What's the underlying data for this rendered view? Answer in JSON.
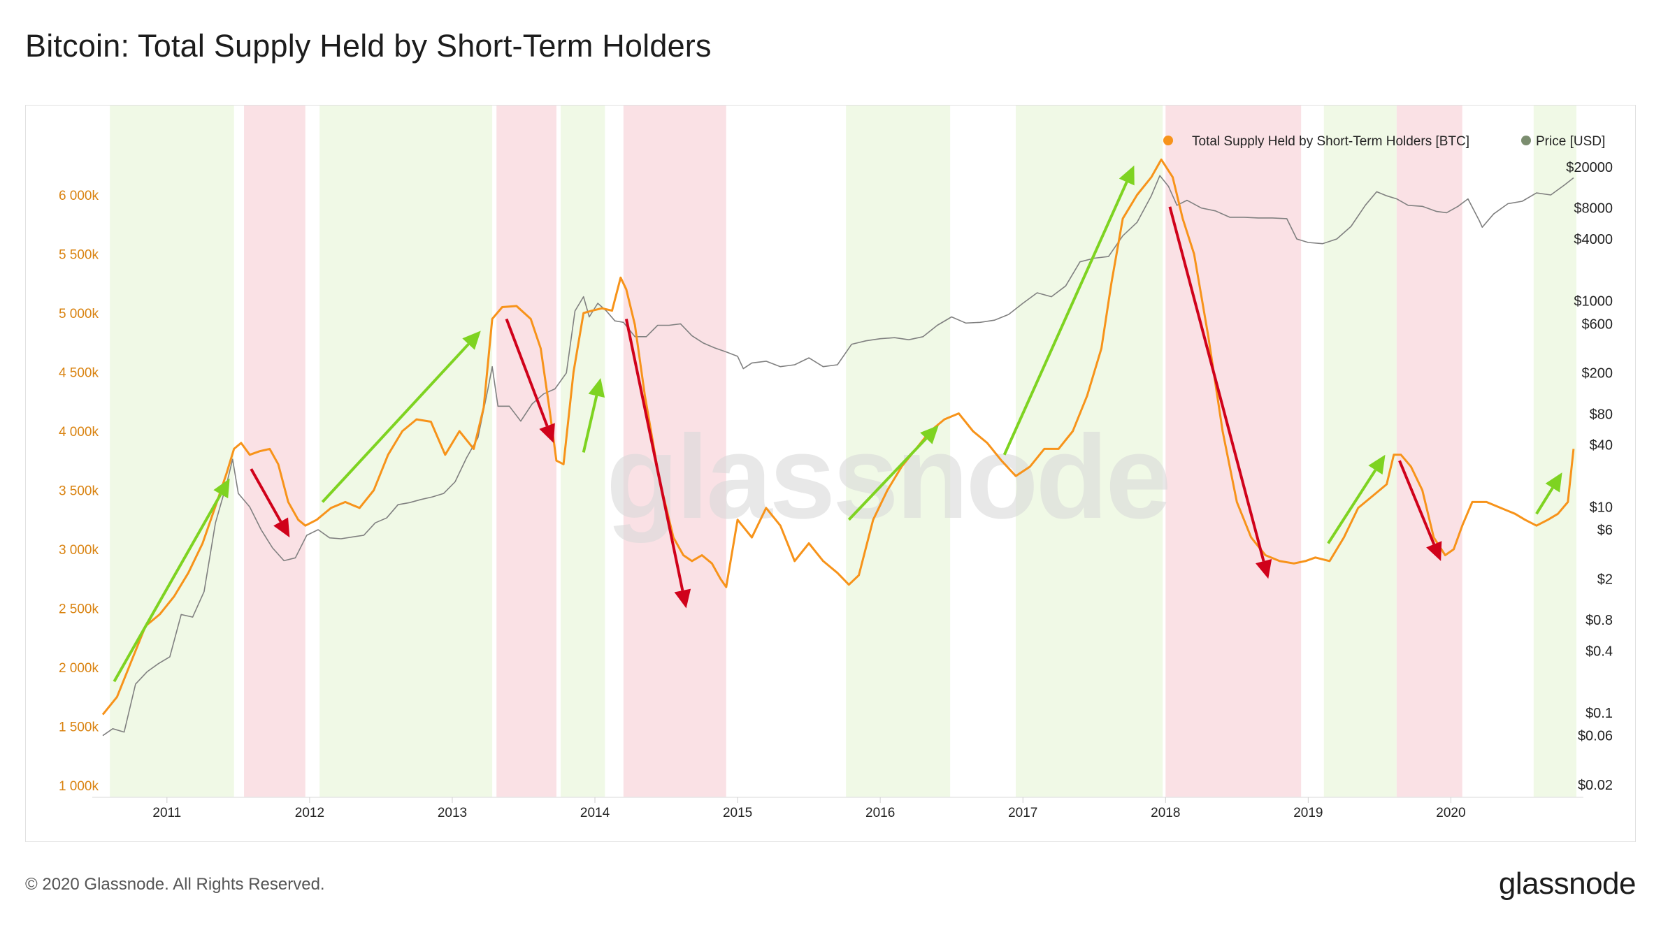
{
  "title": "Bitcoin: Total Supply Held by Short-Term Holders",
  "footer": {
    "copyright": "© 2020 Glassnode. All Rights Reserved.",
    "brand": "glassnode"
  },
  "watermark": "glassnode",
  "colors": {
    "sth_supply": "#f7931a",
    "price": "#808080",
    "up_arrow": "#7ed321",
    "down_arrow": "#d0021b",
    "up_band": "#f0f9e6",
    "down_band": "#fae1e5",
    "left_axis_text": "#d9820f"
  },
  "chart_data": {
    "type": "line",
    "title": "Bitcoin: Total Supply Held by Short-Term Holders",
    "legend": {
      "placement": "top-right",
      "items": [
        {
          "name": "Total Supply Held by Short-Term Holders [BTC]",
          "color": "#f7931a"
        },
        {
          "name": "Price [USD]",
          "color": "#7b8d6f"
        }
      ]
    },
    "x_range": [
      2010.55,
      2020.88
    ],
    "x_ticks": [
      {
        "label": "2011",
        "value": 2011
      },
      {
        "label": "2012",
        "value": 2012
      },
      {
        "label": "2013",
        "value": 2013
      },
      {
        "label": "2014",
        "value": 2014
      },
      {
        "label": "2015",
        "value": 2015
      },
      {
        "label": "2016",
        "value": 2016
      },
      {
        "label": "2017",
        "value": 2017
      },
      {
        "label": "2018",
        "value": 2018
      },
      {
        "label": "2019",
        "value": 2019
      },
      {
        "label": "2020",
        "value": 2020
      }
    ],
    "left_axis": {
      "ylim": [
        1000000,
        6800000
      ],
      "ticks": [
        {
          "label": "1 000k",
          "value": 1000000
        },
        {
          "label": "1 500k",
          "value": 1500000
        },
        {
          "label": "2 000k",
          "value": 2000000
        },
        {
          "label": "2 500k",
          "value": 2500000
        },
        {
          "label": "3 000k",
          "value": 3000000
        },
        {
          "label": "3 500k",
          "value": 3500000
        },
        {
          "label": "4 000k",
          "value": 4000000
        },
        {
          "label": "4 500k",
          "value": 4500000
        },
        {
          "label": "5 000k",
          "value": 5000000
        },
        {
          "label": "5 500k",
          "value": 5500000
        },
        {
          "label": "6 000k",
          "value": 6000000
        }
      ]
    },
    "right_axis": {
      "scale": "log",
      "ylim": [
        0.02,
        20000
      ],
      "ticks": [
        {
          "label": "$20000",
          "value": 20000
        },
        {
          "label": "$8000",
          "value": 8000
        },
        {
          "label": "$4000",
          "value": 4000
        },
        {
          "label": "$1000",
          "value": 1000
        },
        {
          "label": "$600",
          "value": 600
        },
        {
          "label": "$200",
          "value": 200
        },
        {
          "label": "$80",
          "value": 80
        },
        {
          "label": "$40",
          "value": 40
        },
        {
          "label": "$10",
          "value": 10
        },
        {
          "label": "$6",
          "value": 6
        },
        {
          "label": "$2",
          "value": 2
        },
        {
          "label": "$0.8",
          "value": 0.8
        },
        {
          "label": "$0.4",
          "value": 0.4
        },
        {
          "label": "$0.1",
          "value": 0.1
        },
        {
          "label": "$0.06",
          "value": 0.06
        },
        {
          "label": "$0.02",
          "value": 0.02
        }
      ]
    },
    "bands": [
      {
        "type": "up",
        "start": 2010.6,
        "end": 2011.47
      },
      {
        "type": "down",
        "start": 2011.54,
        "end": 2011.97
      },
      {
        "type": "up",
        "start": 2012.07,
        "end": 2013.28
      },
      {
        "type": "down",
        "start": 2013.31,
        "end": 2013.73
      },
      {
        "type": "up",
        "start": 2013.76,
        "end": 2014.07
      },
      {
        "type": "down",
        "start": 2014.2,
        "end": 2014.92
      },
      {
        "type": "up",
        "start": 2015.76,
        "end": 2016.49
      },
      {
        "type": "up",
        "start": 2016.95,
        "end": 2017.98
      },
      {
        "type": "down",
        "start": 2018.0,
        "end": 2018.95
      },
      {
        "type": "up",
        "start": 2019.11,
        "end": 2019.62
      },
      {
        "type": "down",
        "start": 2019.62,
        "end": 2020.08
      },
      {
        "type": "up",
        "start": 2020.58,
        "end": 2020.88
      }
    ],
    "series": [
      {
        "name": "Total Supply Held by Short-Term Holders [BTC]",
        "axis": "left",
        "x": [
          2010.55,
          2010.65,
          2010.75,
          2010.85,
          2010.95,
          2011.05,
          2011.15,
          2011.25,
          2011.35,
          2011.42,
          2011.47,
          2011.52,
          2011.58,
          2011.65,
          2011.72,
          2011.78,
          2011.85,
          2011.92,
          2011.97,
          2012.05,
          2012.15,
          2012.25,
          2012.35,
          2012.45,
          2012.55,
          2012.65,
          2012.75,
          2012.85,
          2012.95,
          2013.05,
          2013.15,
          2013.22,
          2013.28,
          2013.35,
          2013.45,
          2013.55,
          2013.62,
          2013.68,
          2013.73,
          2013.78,
          2013.85,
          2013.92,
          2013.98,
          2014.05,
          2014.12,
          2014.18,
          2014.22,
          2014.28,
          2014.35,
          2014.45,
          2014.55,
          2014.62,
          2014.68,
          2014.75,
          2014.82,
          2014.88,
          2014.92,
          2015.0,
          2015.1,
          2015.2,
          2015.3,
          2015.4,
          2015.5,
          2015.6,
          2015.7,
          2015.78,
          2015.85,
          2015.95,
          2016.05,
          2016.15,
          2016.25,
          2016.35,
          2016.45,
          2016.55,
          2016.65,
          2016.75,
          2016.85,
          2016.95,
          2017.05,
          2017.15,
          2017.25,
          2017.35,
          2017.45,
          2017.55,
          2017.62,
          2017.7,
          2017.8,
          2017.9,
          2017.97,
          2018.05,
          2018.12,
          2018.2,
          2018.3,
          2018.4,
          2018.5,
          2018.6,
          2018.7,
          2018.8,
          2018.9,
          2018.98,
          2019.05,
          2019.15,
          2019.25,
          2019.35,
          2019.45,
          2019.55,
          2019.6,
          2019.65,
          2019.72,
          2019.8,
          2019.88,
          2019.96,
          2020.02,
          2020.08,
          2020.15,
          2020.25,
          2020.35,
          2020.45,
          2020.52,
          2020.6,
          2020.68,
          2020.75,
          2020.82,
          2020.86
        ],
        "y": [
          1600000,
          1750000,
          2050000,
          2350000,
          2450000,
          2600000,
          2800000,
          3050000,
          3400000,
          3650000,
          3850000,
          3900000,
          3800000,
          3830000,
          3850000,
          3720000,
          3400000,
          3250000,
          3200000,
          3250000,
          3350000,
          3400000,
          3350000,
          3500000,
          3800000,
          4000000,
          4100000,
          4080000,
          3800000,
          4000000,
          3850000,
          4200000,
          4950000,
          5050000,
          5060000,
          4950000,
          4700000,
          4200000,
          3750000,
          3720000,
          4500000,
          5000000,
          5020000,
          5040000,
          5020000,
          5300000,
          5200000,
          4900000,
          4300000,
          3600000,
          3100000,
          2950000,
          2900000,
          2950000,
          2880000,
          2750000,
          2680000,
          3250000,
          3100000,
          3350000,
          3200000,
          2900000,
          3050000,
          2900000,
          2800000,
          2700000,
          2780000,
          3250000,
          3500000,
          3700000,
          3850000,
          4000000,
          4100000,
          4150000,
          4000000,
          3900000,
          3750000,
          3620000,
          3700000,
          3850000,
          3850000,
          4000000,
          4300000,
          4700000,
          5250000,
          5800000,
          6000000,
          6150000,
          6300000,
          6150000,
          5800000,
          5500000,
          4800000,
          4000000,
          3400000,
          3100000,
          2950000,
          2900000,
          2880000,
          2900000,
          2930000,
          2900000,
          3100000,
          3350000,
          3450000,
          3550000,
          3800000,
          3800000,
          3700000,
          3500000,
          3100000,
          2950000,
          3000000,
          3200000,
          3400000,
          3400000,
          3350000,
          3300000,
          3250000,
          3200000,
          3250000,
          3300000,
          3400000,
          3850000
        ]
      },
      {
        "name": "Price [USD]",
        "axis": "right",
        "scale": "log",
        "x": [
          2010.55,
          2010.62,
          2010.7,
          2010.78,
          2010.86,
          2010.94,
          2011.02,
          2011.1,
          2011.18,
          2011.26,
          2011.34,
          2011.42,
          2011.46,
          2011.5,
          2011.58,
          2011.66,
          2011.74,
          2011.82,
          2011.9,
          2011.98,
          2012.06,
          2012.14,
          2012.22,
          2012.3,
          2012.38,
          2012.46,
          2012.54,
          2012.62,
          2012.7,
          2012.78,
          2012.86,
          2012.94,
          2013.02,
          2013.1,
          2013.18,
          2013.25,
          2013.28,
          2013.32,
          2013.4,
          2013.48,
          2013.56,
          2013.64,
          2013.72,
          2013.8,
          2013.86,
          2013.92,
          2013.96,
          2014.02,
          2014.08,
          2014.14,
          2014.2,
          2014.28,
          2014.36,
          2014.44,
          2014.52,
          2014.6,
          2014.68,
          2014.76,
          2014.84,
          2014.92,
          2015.0,
          2015.04,
          2015.1,
          2015.2,
          2015.3,
          2015.4,
          2015.5,
          2015.6,
          2015.7,
          2015.8,
          2015.9,
          2016.0,
          2016.1,
          2016.2,
          2016.3,
          2016.4,
          2016.5,
          2016.6,
          2016.7,
          2016.8,
          2016.9,
          2017.0,
          2017.1,
          2017.2,
          2017.3,
          2017.4,
          2017.5,
          2017.6,
          2017.7,
          2017.8,
          2017.9,
          2017.96,
          2018.02,
          2018.08,
          2018.15,
          2018.25,
          2018.35,
          2018.45,
          2018.55,
          2018.65,
          2018.75,
          2018.85,
          2018.92,
          2019.0,
          2019.1,
          2019.2,
          2019.3,
          2019.4,
          2019.48,
          2019.55,
          2019.62,
          2019.7,
          2019.8,
          2019.9,
          2019.97,
          2020.05,
          2020.12,
          2020.2,
          2020.22,
          2020.3,
          2020.4,
          2020.5,
          2020.6,
          2020.7,
          2020.8,
          2020.86
        ],
        "y": [
          0.06,
          0.07,
          0.065,
          0.19,
          0.25,
          0.3,
          0.35,
          0.9,
          0.85,
          1.5,
          7.0,
          17.0,
          29.0,
          13.5,
          10.0,
          6.0,
          4.0,
          3.0,
          3.2,
          5.3,
          6.0,
          5.0,
          4.9,
          5.1,
          5.3,
          7.0,
          7.8,
          10.5,
          11.0,
          11.8,
          12.5,
          13.5,
          17.5,
          30.0,
          47.0,
          140.0,
          230.0,
          95.0,
          95.0,
          68.0,
          100.0,
          125.0,
          140.0,
          200.0,
          800.0,
          1100.0,
          700.0,
          950.0,
          800.0,
          640.0,
          620.0,
          450.0,
          450.0,
          580.0,
          580.0,
          600.0,
          460.0,
          390.0,
          350.0,
          320.0,
          290.0,
          220.0,
          250.0,
          260.0,
          230.0,
          240.0,
          280.0,
          230.0,
          240.0,
          380.0,
          410.0,
          430.0,
          440.0,
          420.0,
          450.0,
          580.0,
          700.0,
          610.0,
          620.0,
          650.0,
          740.0,
          950.0,
          1200.0,
          1100.0,
          1400.0,
          2400.0,
          2600.0,
          2700.0,
          4300.0,
          5800.0,
          10500.0,
          16500.0,
          13000.0,
          8500.0,
          9500.0,
          8000.0,
          7500.0,
          6500.0,
          6500.0,
          6400.0,
          6400.0,
          6300.0,
          4000.0,
          3700.0,
          3600.0,
          4000.0,
          5300.0,
          8500.0,
          11500.0,
          10500.0,
          9800.0,
          8500.0,
          8300.0,
          7400.0,
          7200.0,
          8300.0,
          9800.0,
          6000.0,
          5200.0,
          7000.0,
          8800.0,
          9300.0,
          11200.0,
          10700.0,
          13500.0,
          15700.0
        ]
      }
    ],
    "arrows": [
      {
        "dir": "up",
        "from": [
          2010.63,
          1880000
        ],
        "to": [
          2011.44,
          3600000
        ]
      },
      {
        "dir": "down",
        "from": [
          2011.59,
          3680000
        ],
        "to": [
          2011.86,
          3100000
        ]
      },
      {
        "dir": "up",
        "from": [
          2012.09,
          3400000
        ],
        "to": [
          2013.2,
          4850000
        ]
      },
      {
        "dir": "down",
        "from": [
          2013.38,
          4950000
        ],
        "to": [
          2013.71,
          3900000
        ]
      },
      {
        "dir": "up",
        "from": [
          2013.92,
          3820000
        ],
        "to": [
          2014.04,
          4450000
        ]
      },
      {
        "dir": "down",
        "from": [
          2014.22,
          4950000
        ],
        "to": [
          2014.64,
          2500000
        ]
      },
      {
        "dir": "up",
        "from": [
          2015.78,
          3250000
        ],
        "to": [
          2016.41,
          4050000
        ]
      },
      {
        "dir": "up",
        "from": [
          2016.87,
          3800000
        ],
        "to": [
          2017.78,
          6250000
        ]
      },
      {
        "dir": "down",
        "from": [
          2018.03,
          5900000
        ],
        "to": [
          2018.72,
          2750000
        ]
      },
      {
        "dir": "up",
        "from": [
          2019.14,
          3050000
        ],
        "to": [
          2019.54,
          3800000
        ]
      },
      {
        "dir": "down",
        "from": [
          2019.64,
          3750000
        ],
        "to": [
          2019.93,
          2900000
        ]
      },
      {
        "dir": "up",
        "from": [
          2020.6,
          3300000
        ],
        "to": [
          2020.78,
          3650000
        ]
      }
    ]
  }
}
